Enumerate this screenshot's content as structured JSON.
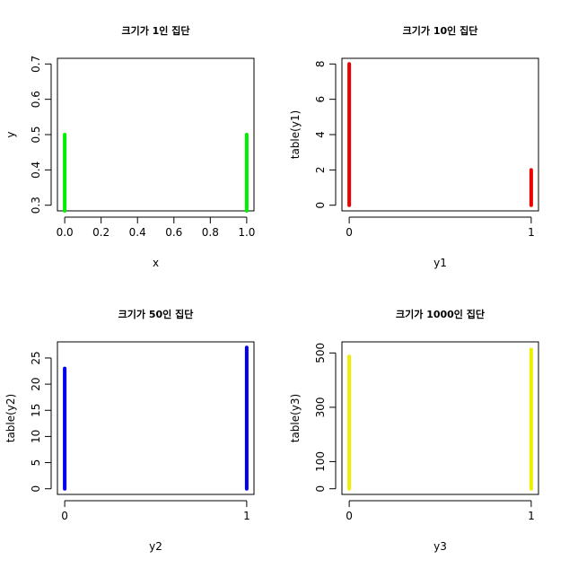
{
  "figure": {
    "background": "#ffffff",
    "chart_data": [
      {
        "type": "bar",
        "title": "크기가 1인 집단",
        "xlabel": "x",
        "ylabel": "y",
        "xlim": [
          0,
          1
        ],
        "ylim": [
          0.3,
          0.7
        ],
        "xticks": [
          "0.0",
          "0.2",
          "0.4",
          "0.6",
          "0.8",
          "1.0"
        ],
        "xtick_values": [
          0,
          0.2,
          0.4,
          0.6,
          0.8,
          1.0
        ],
        "yticks": [
          "0.3",
          "0.4",
          "0.5",
          "0.6",
          "0.7"
        ],
        "ytick_values": [
          0.3,
          0.4,
          0.5,
          0.6,
          0.7
        ],
        "x": [
          0,
          1
        ],
        "values": [
          0.5,
          0.5
        ],
        "color": "#00ee00"
      },
      {
        "type": "bar",
        "title": "크기가 10인 집단",
        "xlabel": "y1",
        "ylabel": "table(y1)",
        "xlim": [
          0,
          1
        ],
        "ylim": [
          0,
          8
        ],
        "xticks": [
          "0",
          "1"
        ],
        "xtick_values": [
          0,
          1
        ],
        "yticks": [
          "0",
          "2",
          "4",
          "6",
          "8"
        ],
        "ytick_values": [
          0,
          2,
          4,
          6,
          8
        ],
        "x": [
          0,
          1
        ],
        "values": [
          8,
          2
        ],
        "color": "#ee0000"
      },
      {
        "type": "bar",
        "title": "크기가 50인 집단",
        "xlabel": "y2",
        "ylabel": "table(y2)",
        "xlim": [
          0,
          1
        ],
        "ylim": [
          0,
          27
        ],
        "xticks": [
          "0",
          "1"
        ],
        "xtick_values": [
          0,
          1
        ],
        "yticks": [
          "0",
          "5",
          "10",
          "15",
          "20",
          "25"
        ],
        "ytick_values": [
          0,
          5,
          10,
          15,
          20,
          25
        ],
        "x": [
          0,
          1
        ],
        "values": [
          23,
          27
        ],
        "color": "#0000ee"
      },
      {
        "type": "bar",
        "title": "크기가 1000인 집단",
        "xlabel": "y3",
        "ylabel": "table(y3)",
        "xlim": [
          0,
          1
        ],
        "ylim": [
          0,
          520
        ],
        "xticks": [
          "0",
          "1"
        ],
        "xtick_values": [
          0,
          1
        ],
        "yticks": [
          "0",
          "100",
          "300",
          "500"
        ],
        "ytick_values": [
          0,
          100,
          300,
          500
        ],
        "x": [
          0,
          1
        ],
        "values": [
          487,
          513
        ],
        "color": "#eeee00"
      }
    ]
  }
}
